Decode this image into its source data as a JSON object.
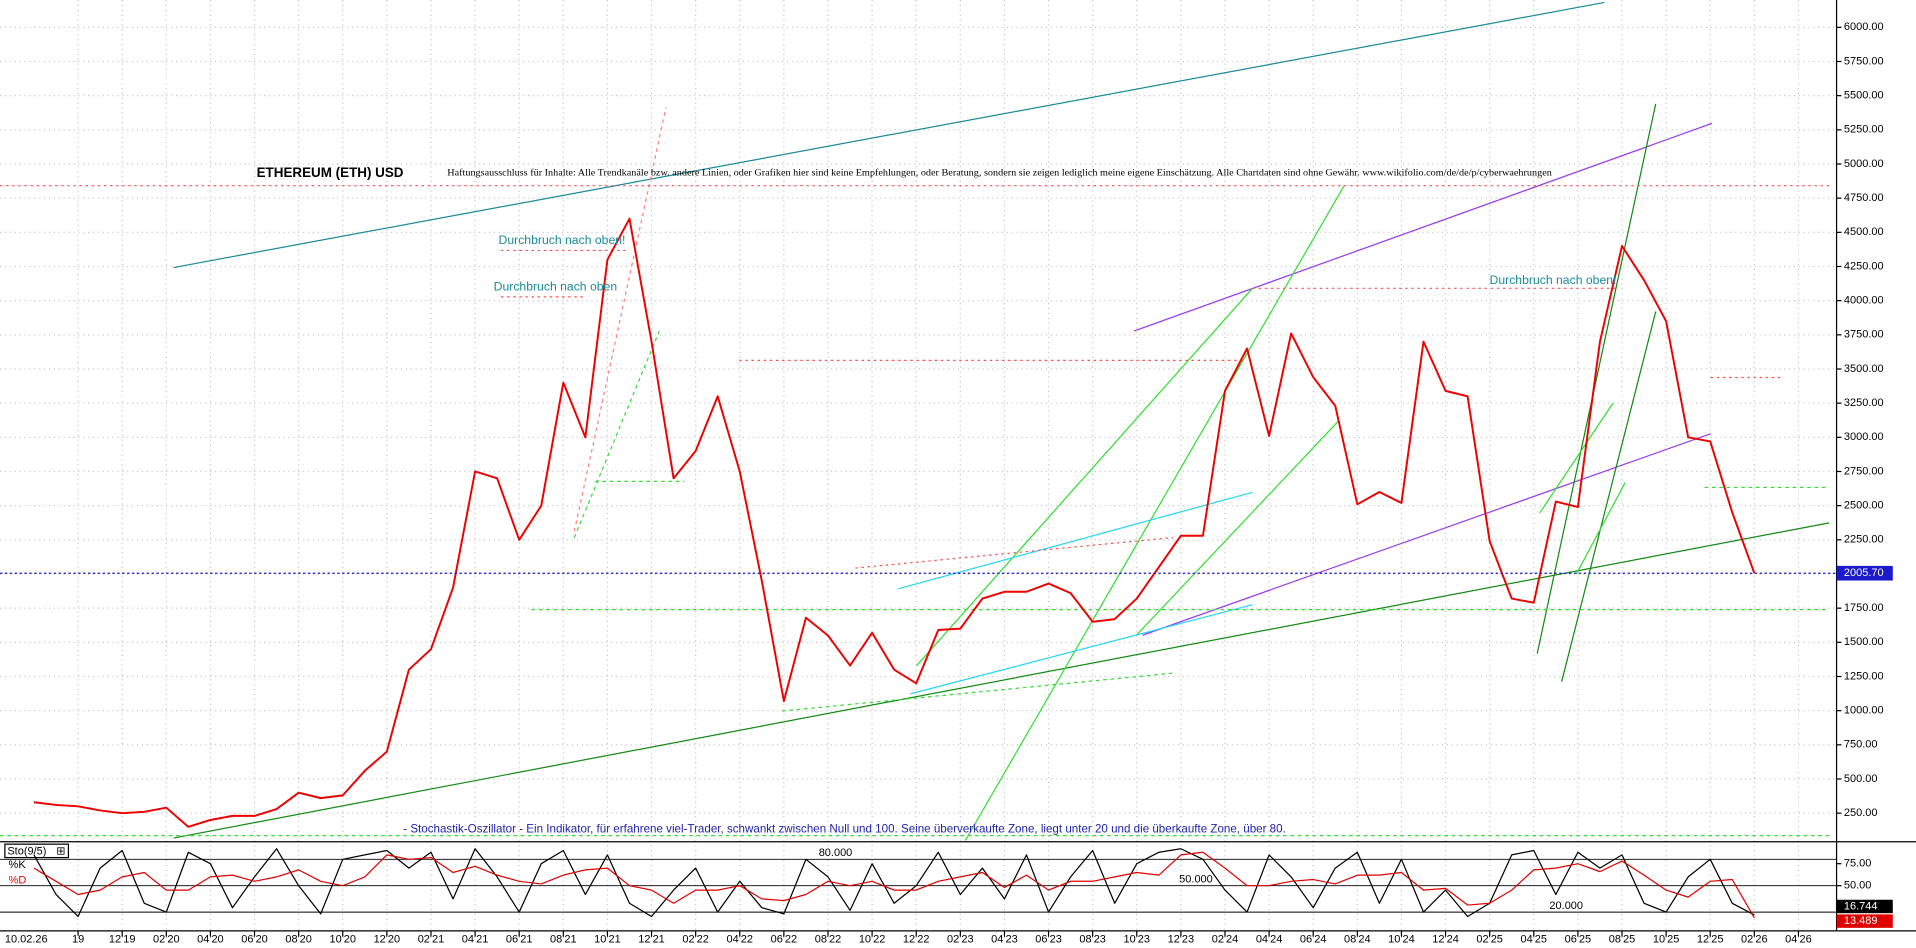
{
  "chart_data": [
    {
      "type": "line",
      "title": "ETHEREUM (ETH) USD",
      "subtitle": "Haftungsausschluss für Inhalte: Alle Trendkanäle bzw. andere Linien, oder Grafiken hier sind keine Empfehlungen, oder Beratung, sondern sie zeigen lediglich meine eigene Einschätzung. Alle Chartdaten sind ohne Gewähr. www.wikifolio.com/de/de/p/cyberwaehrungen",
      "annotations": [
        "Durchbruch nach oben!",
        "Durchbruch nach oben",
        "Durchbruch nach oben!",
        "- Stochastik-Oszillator - Ein Indikator, für erfahrene viel-Trader, schwankt zwischen Null und 100. Seine überverkaufte Zone, liegt unter 20 und die überkaufte Zone, über 80."
      ],
      "date_label": "10.02.26",
      "categories": [
        null,
        null,
        "19",
        null,
        "12'19",
        null,
        "02'20",
        null,
        "04'20",
        null,
        "06'20",
        null,
        "08'20",
        null,
        "10'20",
        null,
        "12'20",
        null,
        "02'21",
        null,
        "04'21",
        null,
        "06'21",
        null,
        "08'21",
        null,
        "10'21",
        null,
        "12'21",
        null,
        "02'22",
        null,
        "04'22",
        null,
        "06'22",
        null,
        "08'22",
        null,
        "10'22",
        null,
        "12'22",
        null,
        "02'23",
        null,
        "04'23",
        null,
        "06'23",
        null,
        "08'23",
        null,
        "10'23",
        null,
        "12'23",
        null,
        "02'24",
        null,
        "04'24",
        null,
        "06'24",
        null,
        "08'24",
        null,
        "10'24",
        null,
        "12'24",
        null,
        "02'25",
        null,
        "04'25",
        null,
        "06'25",
        null,
        "08'25",
        null,
        "10'25",
        null,
        "12'25",
        null,
        "02'26",
        null,
        "04'26"
      ],
      "values": [
        330,
        310,
        300,
        270,
        250,
        260,
        290,
        150,
        200,
        230,
        230,
        280,
        400,
        360,
        380,
        560,
        700,
        1300,
        1450,
        1900,
        2750,
        2700,
        2250,
        2500,
        3400,
        3000,
        4300,
        4600,
        3700,
        2700,
        2900,
        3300,
        2750,
        1950,
        1070,
        1680,
        1550,
        1330,
        1570,
        1300,
        1200,
        1590,
        1600,
        1820,
        1870,
        1870,
        1930,
        1860,
        1650,
        1670,
        1820,
        2050,
        2280,
        2280,
        3340,
        3650,
        3010,
        3760,
        3440,
        3230,
        2510,
        2600,
        2520,
        3700,
        3340,
        3300,
        2240,
        1820,
        1790,
        2530,
        2490,
        3700,
        4400,
        4150,
        3850,
        3000,
        2970,
        2450,
        2005.7,
        null,
        null
      ],
      "color": "#ee0000",
      "price_marker": {
        "value": 2005.7,
        "label": "2005.70"
      },
      "ylim": [
        50,
        6200
      ],
      "yticks": [
        {
          "value": 250,
          "label": "250.00"
        },
        {
          "value": 500,
          "label": "500.00"
        },
        {
          "value": 750,
          "label": "750.00"
        },
        {
          "value": 1000,
          "label": "1000.00"
        },
        {
          "value": 1250,
          "label": "1250.00"
        },
        {
          "value": 1500,
          "label": "1500.00"
        },
        {
          "value": 1750,
          "label": "1750.00"
        },
        {
          "value": 2000,
          "label": "2000.00"
        },
        {
          "value": 2250,
          "label": "2250.00"
        },
        {
          "value": 2500,
          "label": "2500.00"
        },
        {
          "value": 2750,
          "label": "2750.00"
        },
        {
          "value": 3000,
          "label": "3000.00"
        },
        {
          "value": 3250,
          "label": "3250.00"
        },
        {
          "value": 3500,
          "label": "3500.00"
        },
        {
          "value": 3750,
          "label": "3750.00"
        },
        {
          "value": 4000,
          "label": "4000.00"
        },
        {
          "value": 4250,
          "label": "4250.00"
        },
        {
          "value": 4500,
          "label": "4500.00"
        },
        {
          "value": 4750,
          "label": "4750.00"
        },
        {
          "value": 5000,
          "label": "5000.00"
        },
        {
          "value": 5250,
          "label": "5250.00"
        },
        {
          "value": 5500,
          "label": "5500.00"
        },
        {
          "value": 5750,
          "label": "5750.00"
        },
        {
          "value": 6000,
          "label": "6000.00"
        }
      ],
      "grid": true
    },
    {
      "type": "line",
      "title": "Sto(9/5)",
      "series": [
        {
          "name": "%K",
          "color": "#000000",
          "values": [
            85,
            40,
            15,
            70,
            90,
            30,
            20,
            88,
            75,
            25,
            60,
            92,
            50,
            18,
            80,
            85,
            90,
            70,
            88,
            35,
            92,
            60,
            20,
            75,
            90,
            40,
            85,
            30,
            15,
            45,
            70,
            20,
            55,
            25,
            18,
            80,
            60,
            22,
            75,
            30,
            50,
            88,
            40,
            70,
            35,
            85,
            20,
            60,
            90,
            30,
            75,
            88,
            92,
            80,
            45,
            20,
            85,
            60,
            25,
            70,
            88,
            30,
            80,
            20,
            45,
            15,
            30,
            85,
            90,
            40,
            88,
            70,
            85,
            30,
            20,
            60,
            80,
            30,
            16.744,
            null,
            null
          ]
        },
        {
          "name": "%D",
          "color": "#e00000",
          "values": [
            70,
            55,
            40,
            45,
            60,
            65,
            45,
            45,
            60,
            62,
            55,
            60,
            68,
            55,
            50,
            60,
            85,
            80,
            82,
            65,
            72,
            62,
            55,
            52,
            62,
            68,
            70,
            50,
            45,
            30,
            45,
            45,
            50,
            35,
            33,
            40,
            55,
            50,
            55,
            45,
            45,
            55,
            60,
            65,
            48,
            62,
            45,
            55,
            55,
            60,
            65,
            62,
            85,
            88,
            70,
            50,
            50,
            55,
            57,
            52,
            62,
            62,
            65,
            45,
            47,
            28,
            30,
            45,
            68,
            70,
            75,
            66,
            78,
            62,
            45,
            37,
            55,
            57,
            13.489,
            null,
            null
          ]
        }
      ],
      "ylim": [
        0,
        100
      ],
      "yticks": [
        {
          "value": 75,
          "label": "75.00"
        },
        {
          "value": 50,
          "label": "50.00"
        }
      ],
      "levels": [
        {
          "value": 80,
          "label": "80.000"
        },
        {
          "value": 50,
          "label": "50.000"
        },
        {
          "value": 20,
          "label": "20.000"
        }
      ]
    }
  ]
}
